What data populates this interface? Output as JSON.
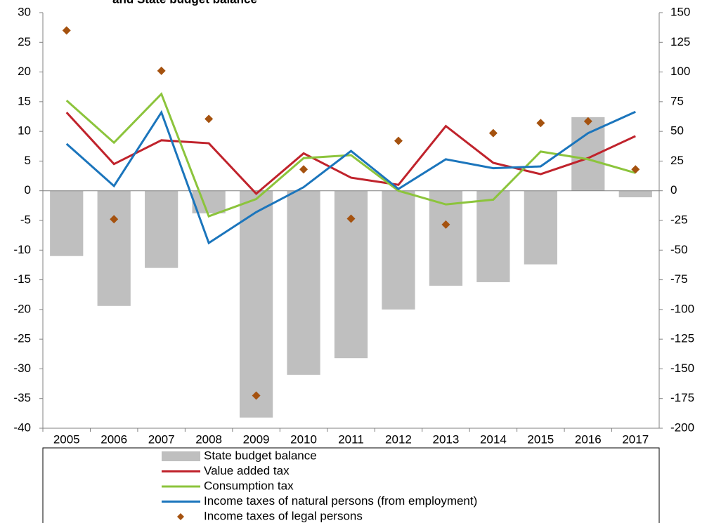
{
  "chart_data": {
    "type": "combo",
    "title": "and State budget balance",
    "categories": [
      "2005",
      "2006",
      "2007",
      "2008",
      "2009",
      "2010",
      "2011",
      "2012",
      "2013",
      "2014",
      "2015",
      "2016",
      "2017"
    ],
    "ylim": [
      -40,
      30
    ],
    "yticks": [
      -40,
      -35,
      -30,
      -25,
      -20,
      -15,
      -10,
      -5,
      0,
      5,
      10,
      15,
      20,
      25,
      30
    ],
    "y2lim": [
      -200,
      150
    ],
    "y2ticks": [
      -200,
      -175,
      -150,
      -125,
      -100,
      -75,
      -50,
      -25,
      0,
      25,
      50,
      75,
      100,
      125,
      150
    ],
    "series": [
      {
        "name": "State budget balance",
        "type": "bar",
        "axis": "y2",
        "color": "#bfbfbf",
        "values": [
          -55,
          -97,
          -65,
          -19,
          -191,
          -155,
          -141,
          -100,
          -80,
          -77,
          -62,
          62,
          -5.5
        ]
      },
      {
        "name": "Value added tax",
        "type": "line",
        "color": "#c0232c",
        "values": [
          13.2,
          4.5,
          8.5,
          8.0,
          -0.5,
          6.3,
          2.2,
          1.0,
          10.9,
          4.7,
          2.8,
          5.5,
          9.2
        ]
      },
      {
        "name": "Consumption tax",
        "type": "line",
        "color": "#8cc43c",
        "values": [
          15.2,
          8.1,
          16.3,
          -4.3,
          -1.4,
          5.5,
          6.0,
          0.0,
          -2.3,
          -1.5,
          6.6,
          5.3,
          3.0
        ]
      },
      {
        "name": "Income taxes of natural persons (from employment)",
        "type": "line",
        "color": "#1b75bc",
        "values": [
          7.9,
          0.8,
          13.2,
          -8.8,
          -3.6,
          0.6,
          6.7,
          0.3,
          5.3,
          3.8,
          4.1,
          9.7,
          13.3
        ]
      },
      {
        "name": "Income taxes of legal persons",
        "type": "scatter",
        "color": "#a5520f",
        "values": [
          27.0,
          -4.8,
          20.2,
          12.1,
          -34.5,
          3.6,
          -4.7,
          8.4,
          -5.7,
          9.7,
          11.4,
          11.7,
          3.6
        ]
      }
    ]
  }
}
